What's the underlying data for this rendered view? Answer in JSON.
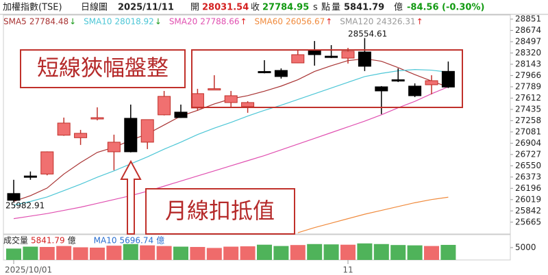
{
  "header": {
    "symbol": "加權指數(TSE)",
    "period": "日線圖",
    "date": "2025/11/11",
    "open_label": "開",
    "close_label": "收",
    "close_flag": "s",
    "unit_points": "點",
    "volume_label": "量",
    "volume_unit": "億",
    "change": "-84.56 (-0.30%)"
  },
  "chart_data": {
    "type": "candlestick",
    "up_color": "#f07070",
    "down_color": "#000000",
    "categories": [
      "2025/10/01",
      null,
      null,
      null,
      null,
      null,
      null,
      null,
      null,
      null,
      null,
      null,
      null,
      null,
      null,
      null,
      null,
      null,
      null,
      null,
      "11",
      null,
      null,
      null,
      null,
      null,
      null
    ],
    "ohlc": {
      "open": [
        26115,
        26390,
        26420,
        27030,
        26990,
        27285,
        26769,
        27295,
        26920,
        27349,
        27392,
        27456,
        27750,
        27542,
        27478,
        28030,
        28046,
        28164,
        28357,
        28270,
        28239,
        28336,
        27789,
        27900,
        27800,
        27821,
        28031.54
      ],
      "high": [
        26330,
        26460,
        26775,
        27306,
        27113,
        27467,
        27038,
        27510,
        27274,
        27724,
        27510,
        27757,
        27971,
        27724,
        27563,
        28207,
        28078,
        28379,
        28508,
        28443,
        28400,
        28554.61,
        27800,
        28078,
        27843,
        27971,
        28186
      ],
      "low": [
        25982.91,
        26330,
        26400,
        27020,
        26877,
        27263,
        26480,
        26760,
        26812,
        27340,
        27300,
        27413,
        27745,
        27467,
        27381,
        28000,
        27918,
        28160,
        28121,
        28240,
        28154,
        28036,
        27360,
        27864,
        27628,
        27671,
        27770
      ],
      "close": [
        26008,
        26370,
        26769,
        27220,
        27059,
        27305,
        26920,
        26769,
        27274,
        27639,
        27306,
        27682,
        27760,
        27649,
        27542,
        28020,
        27950,
        28293,
        28293,
        28255,
        28347,
        28111,
        27724,
        27890,
        27649,
        27885,
        27784.95
      ]
    },
    "ylim": [
      25480,
      28915
    ],
    "yticks": [
      28851,
      28674,
      28497,
      28320,
      28143,
      27966,
      27789,
      27612,
      27435,
      27258,
      27081,
      26904,
      26727,
      26550,
      26373,
      26196,
      26019,
      25842,
      25665
    ],
    "ma_series": [
      {
        "name": "SMA5",
        "color": "#a83232",
        "legend_value": 27784.48,
        "arrow": "↓",
        "arrow_color": "#1a9a1a",
        "values": [
          25990,
          26080,
          26200,
          26420,
          26600,
          26760,
          26840,
          26950,
          27050,
          27190,
          27330,
          27420,
          27520,
          27600,
          27650,
          27720,
          27800,
          27900,
          28030,
          28120,
          28200,
          28230,
          28190,
          28090,
          27980,
          27880,
          27784.48
        ]
      },
      {
        "name": "SMA10",
        "color": "#4cc6d6",
        "legend_value": 28018.92,
        "arrow": "↓",
        "arrow_color": "#1a9a1a",
        "values": [
          25930,
          25990,
          26060,
          26160,
          26260,
          26370,
          26470,
          26580,
          26690,
          26810,
          26920,
          27040,
          27140,
          27230,
          27330,
          27420,
          27500,
          27590,
          27680,
          27770,
          27860,
          27950,
          28000,
          28040,
          28060,
          28050,
          28018.92
        ]
      },
      {
        "name": "SMA20",
        "color": "#e04fb0",
        "legend_value": 27788.66,
        "arrow": "↑",
        "arrow_color": "#e02020",
        "values": [
          25720,
          25760,
          25800,
          25850,
          25900,
          25960,
          26020,
          26080,
          26150,
          26230,
          26310,
          26390,
          26470,
          26550,
          26630,
          26710,
          26800,
          26890,
          26980,
          27070,
          27160,
          27250,
          27350,
          27460,
          27560,
          27680,
          27788.66
        ]
      },
      {
        "name": "SMA60",
        "color": "#f08a3c",
        "legend_value": 26056.67,
        "arrow": "↑",
        "arrow_color": "#e02020",
        "values": [
          null,
          null,
          null,
          null,
          null,
          null,
          null,
          null,
          null,
          null,
          null,
          null,
          null,
          null,
          null,
          null,
          null,
          25500,
          25580,
          25650,
          25720,
          25790,
          25850,
          25910,
          25970,
          26020,
          26056.67
        ]
      },
      {
        "name": "SMA120",
        "color": "#999999",
        "legend_value": 24326.31,
        "arrow": "↑",
        "arrow_color": "#e02020"
      }
    ],
    "annotations": [
      "短線狹幅盤整",
      "月線扣抵值"
    ],
    "volume": {
      "label": "成交量",
      "value": 5841.79,
      "unit": "億",
      "ma_name": "MA10",
      "ma_value": 5696.74,
      "up_color": "#ef6b6b",
      "down_color": "#4fb35a",
      "values": [
        4700,
        5300,
        5200,
        5500,
        5100,
        5000,
        5600,
        6100,
        5700,
        5500,
        5300,
        5200,
        4900,
        5300,
        5400,
        5900,
        5500,
        5800,
        6100,
        6000,
        5900,
        6300,
        6100,
        5800,
        5700,
        5500,
        5841.79
      ],
      "ylim": [
        1200,
        9000
      ],
      "yticks": [
        5000
      ]
    }
  }
}
